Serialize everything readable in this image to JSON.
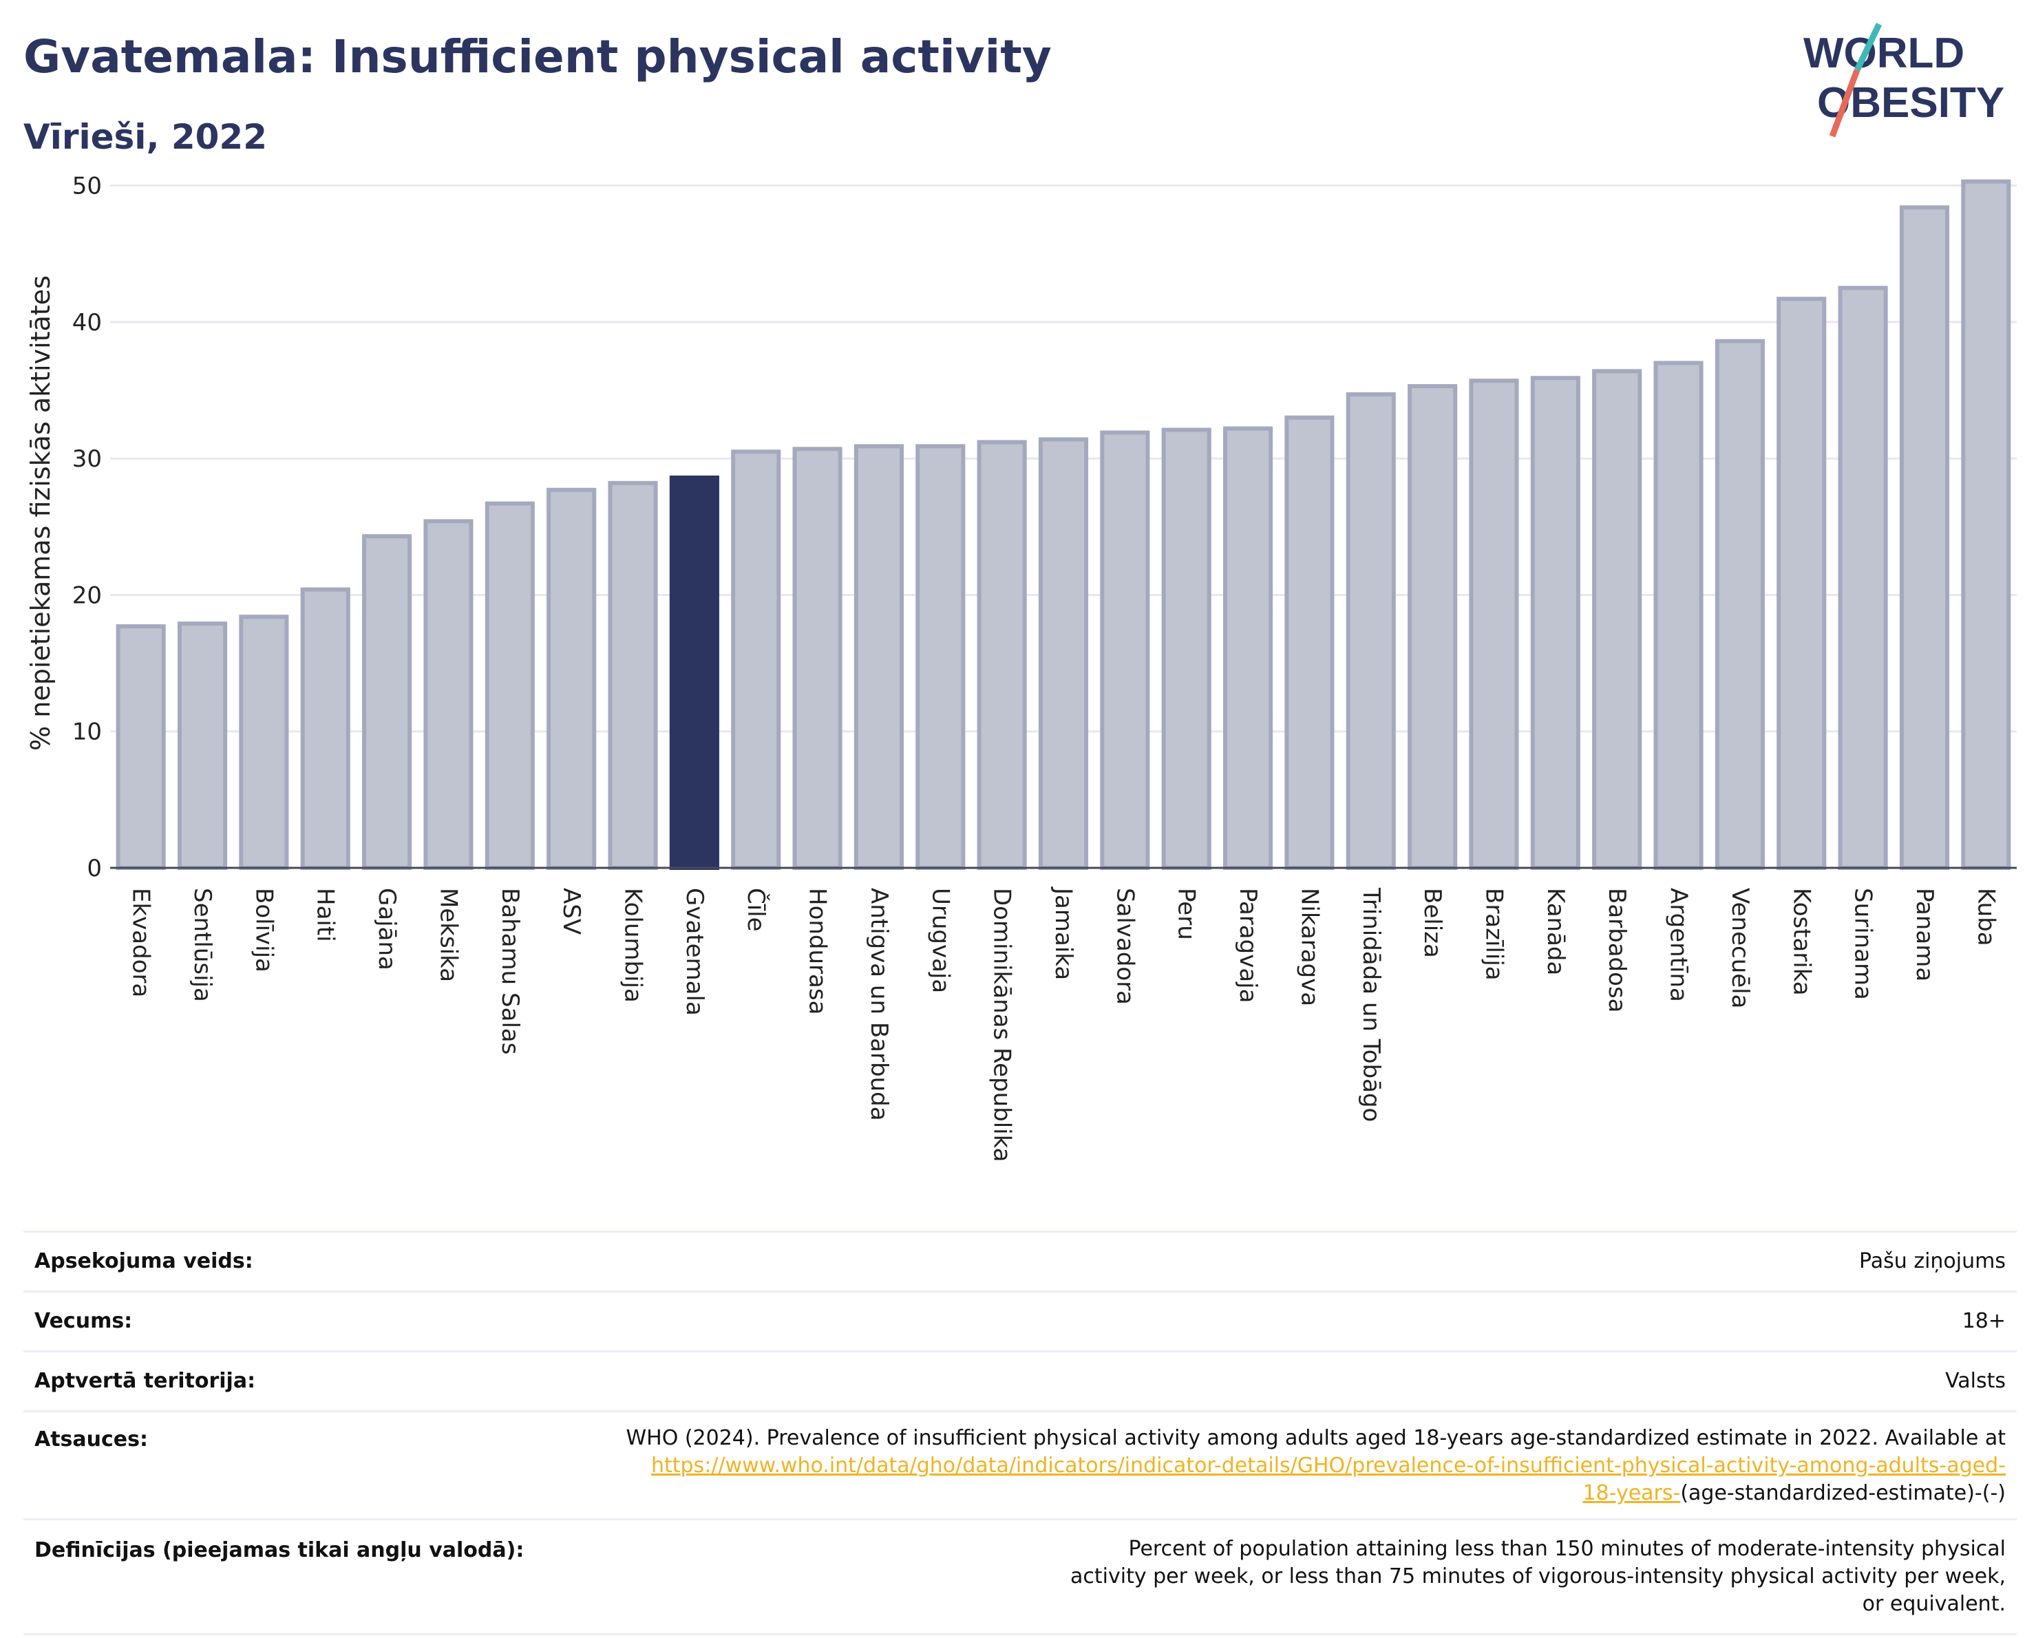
{
  "header": {
    "title": "Gvatemala: Insufficient physical activity",
    "subtitle": "Vīrieši, 2022"
  },
  "logo": {
    "line1": "WORLD",
    "line2": "OBESITY"
  },
  "colors": {
    "highlight": "#2b3560",
    "bar": "#c0c3d0",
    "bar_border": "#a4a9be",
    "title": "#2b3560",
    "link": "#f0b323"
  },
  "chart_data": {
    "type": "bar",
    "ylabel": "% nepietiekamas fiziskās aktivitātes",
    "ylim": [
      0,
      52
    ],
    "yticks": [
      0,
      10,
      20,
      30,
      40,
      50
    ],
    "grid": true,
    "highlight": "Gvatemala",
    "categories": [
      "Ekvadora",
      "Sentlūsija",
      "Bolīvija",
      "Haiti",
      "Gajāna",
      "Meksika",
      "Bahamu Salas",
      "ASV",
      "Kolumbija",
      "Gvatemala",
      "Čīle",
      "Hondurasa",
      "Antigva un Barbuda",
      "Urugvaja",
      "Dominikānas Republika",
      "Jamaika",
      "Salvadora",
      "Peru",
      "Paragvaja",
      "Nikaragva",
      "Trinidāda un Tobāgo",
      "Beliza",
      "Brazīlija",
      "Kanāda",
      "Barbadosa",
      "Argentīna",
      "Venecuēla",
      "Kostarika",
      "Surinama",
      "Panama",
      "Kuba"
    ],
    "values": [
      17.7,
      17.9,
      18.4,
      20.4,
      24.3,
      25.4,
      26.7,
      27.7,
      28.2,
      28.6,
      30.5,
      30.7,
      30.9,
      30.9,
      31.2,
      31.4,
      31.9,
      32.1,
      32.2,
      33.0,
      34.7,
      35.3,
      35.7,
      35.9,
      36.4,
      37.0,
      38.6,
      41.7,
      42.5,
      48.4,
      50.3
    ]
  },
  "meta": {
    "rows": [
      {
        "label": "Apsekojuma veids:",
        "value": "Pašu ziņojums"
      },
      {
        "label": "Vecums:",
        "value": "18+"
      },
      {
        "label": "Aptvertā teritorija:",
        "value": "Valsts"
      }
    ],
    "sources": {
      "label": "Atsauces:",
      "text": "WHO (2024). Prevalence of insufficient physical activity among adults aged 18-years age-standardized estimate in 2022. Available at",
      "link_line1": "https://www.who.int/data/gho/data/indicators/indicator-details/GHO/prevalence-of-insufficient-physical-activity-among-adults-aged-",
      "link_line2": "18-years-",
      "suffix": "(age-standardized-estimate)-(-)"
    },
    "definitions": {
      "label": "Definīcijas (pieejamas tikai angļu valodā):",
      "text": "Percent of population attaining less than 150 minutes of moderate-intensity physical activity per week, or less than 75 minutes of vigorous-intensity physical activity per week, or equivalent."
    }
  }
}
